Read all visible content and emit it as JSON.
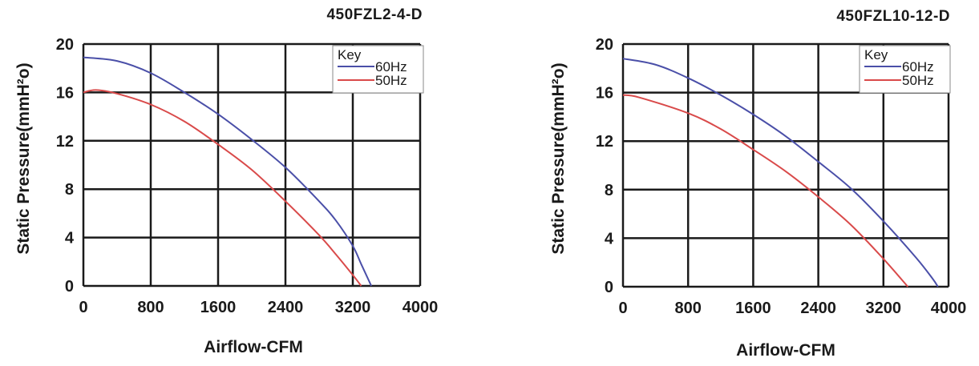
{
  "chart_data": [
    {
      "type": "line",
      "title": "450FZL2-4-D",
      "xlabel": "Airflow-CFM",
      "ylabel": "Static Pressure(mmH²o)",
      "xlim": [
        0,
        4000
      ],
      "ylim": [
        0,
        20
      ],
      "xticks": [
        "0",
        "800",
        "1600",
        "2400",
        "3200",
        "4000"
      ],
      "yticks": [
        "0",
        "4",
        "8",
        "12",
        "16",
        "20"
      ],
      "grid": true,
      "legend": {
        "title": "Key",
        "position": "top-right"
      },
      "series": [
        {
          "name": "60Hz",
          "color": "#4a4fa8",
          "points": [
            [
              0,
              18.9
            ],
            [
              400,
              18.6
            ],
            [
              800,
              17.6
            ],
            [
              1200,
              16.0
            ],
            [
              1600,
              14.2
            ],
            [
              2000,
              12.1
            ],
            [
              2400,
              9.8
            ],
            [
              2800,
              7.0
            ],
            [
              3000,
              5.4
            ],
            [
              3200,
              3.3
            ],
            [
              3300,
              1.8
            ],
            [
              3420,
              0
            ]
          ]
        },
        {
          "name": "50Hz",
          "color": "#d94a4a",
          "points": [
            [
              0,
              16.0
            ],
            [
              150,
              16.2
            ],
            [
              400,
              15.9
            ],
            [
              800,
              15.0
            ],
            [
              1200,
              13.6
            ],
            [
              1600,
              11.7
            ],
            [
              2000,
              9.6
            ],
            [
              2400,
              7.0
            ],
            [
              2800,
              4.2
            ],
            [
              3000,
              2.6
            ],
            [
              3200,
              0.9
            ],
            [
              3300,
              0
            ]
          ]
        }
      ]
    },
    {
      "type": "line",
      "title": "450FZL10-12-D",
      "xlabel": "Airflow-CFM",
      "ylabel": "Static Pressure(mmH²o)",
      "xlim": [
        0,
        4000
      ],
      "ylim": [
        0,
        20
      ],
      "xticks": [
        "0",
        "800",
        "1600",
        "2400",
        "3200",
        "4000"
      ],
      "yticks": [
        "0",
        "4",
        "8",
        "12",
        "16",
        "20"
      ],
      "grid": true,
      "legend": {
        "title": "Key",
        "position": "top-right"
      },
      "series": [
        {
          "name": "60Hz",
          "color": "#4a4fa8",
          "points": [
            [
              0,
              18.8
            ],
            [
              400,
              18.3
            ],
            [
              800,
              17.2
            ],
            [
              1200,
              15.8
            ],
            [
              1600,
              14.2
            ],
            [
              2000,
              12.4
            ],
            [
              2400,
              10.3
            ],
            [
              2800,
              8.1
            ],
            [
              3200,
              5.4
            ],
            [
              3600,
              2.4
            ],
            [
              3800,
              0.7
            ],
            [
              3870,
              0
            ]
          ]
        },
        {
          "name": "50Hz",
          "color": "#d94a4a",
          "points": [
            [
              0,
              15.8
            ],
            [
              200,
              15.6
            ],
            [
              800,
              14.3
            ],
            [
              1200,
              13.0
            ],
            [
              1600,
              11.3
            ],
            [
              2000,
              9.5
            ],
            [
              2400,
              7.4
            ],
            [
              2800,
              5.1
            ],
            [
              3200,
              2.3
            ],
            [
              3500,
              0
            ]
          ]
        }
      ]
    }
  ]
}
